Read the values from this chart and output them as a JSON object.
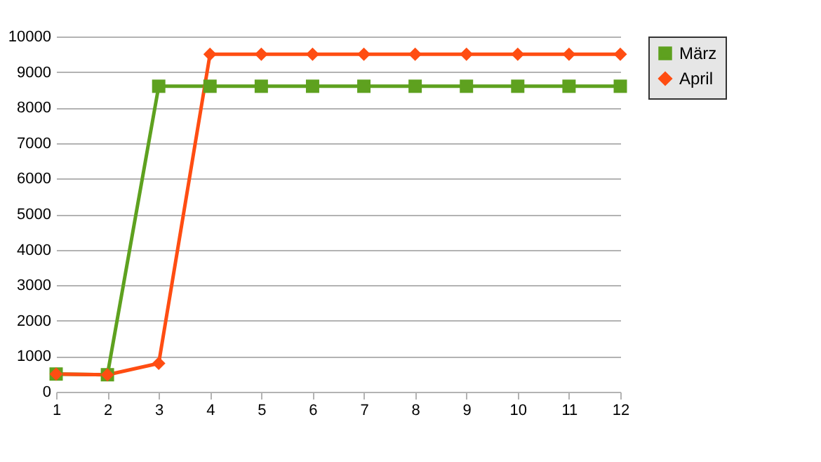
{
  "chart_data": {
    "type": "line",
    "x": [
      1,
      2,
      3,
      4,
      5,
      6,
      7,
      8,
      9,
      10,
      11,
      12
    ],
    "series": [
      {
        "name": "März",
        "color": "#5ea11f",
        "marker": "square",
        "values": [
          500,
          480,
          8600,
          8600,
          8600,
          8600,
          8600,
          8600,
          8600,
          8600,
          8600,
          8600
        ]
      },
      {
        "name": "April",
        "color": "#ff4d12",
        "marker": "diamond",
        "values": [
          500,
          480,
          800,
          9500,
          9500,
          9500,
          9500,
          9500,
          9500,
          9500,
          9500,
          9500
        ]
      }
    ],
    "xlim": [
      1,
      12
    ],
    "xticks": [
      1,
      2,
      3,
      4,
      5,
      6,
      7,
      8,
      9,
      10,
      11,
      12
    ],
    "ylim": [
      0,
      10000
    ],
    "yticks": [
      0,
      1000,
      2000,
      3000,
      4000,
      5000,
      6000,
      7000,
      8000,
      9000,
      10000
    ],
    "grid": "y",
    "legend": "right"
  }
}
